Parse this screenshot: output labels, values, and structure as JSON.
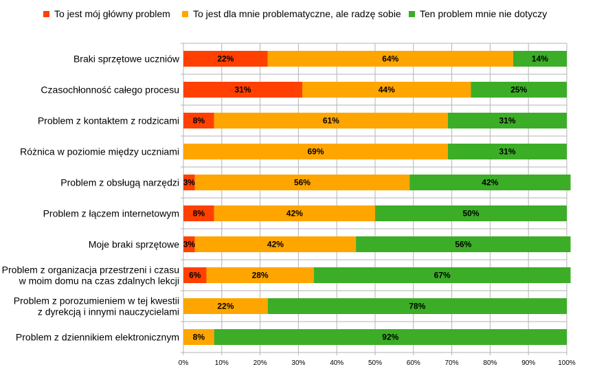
{
  "chart_data": {
    "type": "bar",
    "orientation": "horizontal",
    "stacked": true,
    "percent": true,
    "categories": [
      [
        "Braki sprzętowe uczniów"
      ],
      [
        "Czasochłonność całego procesu"
      ],
      [
        "Problem z kontaktem z rodzicami"
      ],
      [
        "Różnica w poziomie między uczniami"
      ],
      [
        "Problem z obsługą narzędzi"
      ],
      [
        "Problem z łączem internetowym"
      ],
      [
        "Moje braki sprzętowe"
      ],
      [
        "Problem z organizacja przestrzeni i czasu",
        "w moim domu na czas zdalnych lekcji"
      ],
      [
        "Problem z porozumieniem w tej kwestii",
        "z dyrekcją i innymi nauczycielami"
      ],
      [
        "Problem z dziennikiem elektronicznym"
      ]
    ],
    "series": [
      {
        "name": "To jest mój główny problem",
        "color": "#ff4000",
        "values": [
          22,
          31,
          8,
          0,
          3,
          8,
          3,
          6,
          0,
          0
        ],
        "labels": [
          "22%",
          "31%",
          "8%",
          "",
          "3%",
          "8%",
          "3%",
          "6%",
          "",
          ""
        ]
      },
      {
        "name": "To jest dla mnie problematyczne, ale radzę sobie",
        "color": "#ffa500",
        "values": [
          64,
          44,
          61,
          69,
          56,
          42,
          42,
          28,
          22,
          8
        ],
        "labels": [
          "64%",
          "44%",
          "61%",
          "69%",
          "56%",
          "42%",
          "42%",
          "28%",
          "22%",
          "8%"
        ]
      },
      {
        "name": "Ten problem mnie nie dotyczy",
        "color": "#3cad27",
        "values": [
          14,
          25,
          31,
          31,
          42,
          50,
          56,
          67,
          78,
          92
        ],
        "labels": [
          "14%",
          "25%",
          "31%",
          "31%",
          "42%",
          "50%",
          "56%",
          "67%",
          "78%",
          "92%"
        ]
      }
    ],
    "xlim": [
      0,
      100
    ],
    "xticks": [
      "0%",
      "10%",
      "20%",
      "30%",
      "40%",
      "50%",
      "60%",
      "70%",
      "80%",
      "90%",
      "100%"
    ],
    "legend_position": "top",
    "grid": true,
    "grid_color": "#b3b3b3"
  }
}
